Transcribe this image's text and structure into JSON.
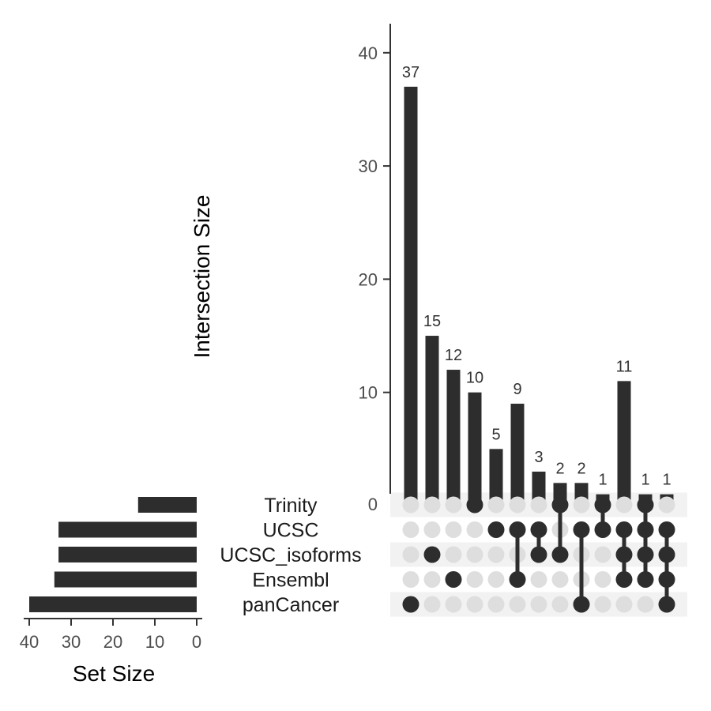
{
  "chart_data": {
    "type": "bar",
    "subtype": "upset",
    "intersection_axis": {
      "ylabel": "Intersection Size",
      "ylim": [
        0,
        42
      ],
      "ticks": [
        0,
        10,
        20,
        30,
        40
      ]
    },
    "setsize_axis": {
      "xlabel": "Set Size",
      "xlim": [
        0,
        41
      ],
      "ticks": [
        40,
        30,
        20,
        10,
        0
      ],
      "reversed": true
    },
    "sets": [
      {
        "name": "Trinity",
        "size": 14
      },
      {
        "name": "UCSC",
        "size": 33
      },
      {
        "name": "UCSC_isoforms",
        "size": 33
      },
      {
        "name": "Ensembl",
        "size": 34
      },
      {
        "name": "panCancer",
        "size": 40
      }
    ],
    "intersections": [
      {
        "value": 37,
        "members": [
          "panCancer"
        ]
      },
      {
        "value": 15,
        "members": [
          "UCSC_isoforms"
        ]
      },
      {
        "value": 12,
        "members": [
          "Ensembl"
        ]
      },
      {
        "value": 10,
        "members": [
          "Trinity"
        ]
      },
      {
        "value": 5,
        "members": [
          "UCSC"
        ]
      },
      {
        "value": 9,
        "members": [
          "UCSC",
          "Ensembl"
        ]
      },
      {
        "value": 3,
        "members": [
          "UCSC",
          "UCSC_isoforms"
        ]
      },
      {
        "value": 2,
        "members": [
          "Trinity",
          "UCSC_isoforms"
        ]
      },
      {
        "value": 2,
        "members": [
          "UCSC",
          "panCancer"
        ]
      },
      {
        "value": 1,
        "members": [
          "Trinity",
          "UCSC"
        ]
      },
      {
        "value": 11,
        "members": [
          "UCSC",
          "UCSC_isoforms",
          "Ensembl"
        ]
      },
      {
        "value": 1,
        "members": [
          "Trinity",
          "UCSC",
          "UCSC_isoforms",
          "Ensembl"
        ]
      },
      {
        "value": 1,
        "members": [
          "UCSC",
          "UCSC_isoforms",
          "Ensembl",
          "panCancer"
        ]
      }
    ],
    "colors": {
      "bar": "#2d2d2d",
      "dot_active": "#2d2d2d",
      "dot_inactive": "#dedede",
      "stripe": "#f2f2f2",
      "axis": "#333333"
    },
    "grid": false
  }
}
